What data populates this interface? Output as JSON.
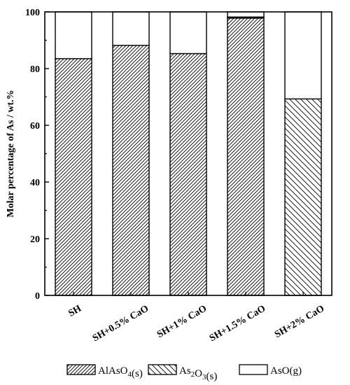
{
  "chart_data": {
    "type": "bar",
    "stacked": true,
    "categories": [
      "SH",
      "SH+0.5% CaO",
      "SH+1% CaO",
      "SH+1.5% CaO",
      "SH+2% CaO"
    ],
    "ylabel": "Molar percentage of As / wt.%",
    "xlabel": "",
    "ylim": [
      0,
      100
    ],
    "yticks": [
      0,
      20,
      40,
      60,
      80,
      100
    ],
    "grid": false,
    "legend_position": "bottom",
    "series": [
      {
        "name": "AlAsO4(s)",
        "legend": {
          "base": "AlAsO",
          "sub": "4",
          "suffix": "(s)"
        },
        "pattern": "dense-forward-hatch",
        "values": [
          83.5,
          88.2,
          85.3,
          97.8,
          0
        ]
      },
      {
        "name": "As2O3(s)",
        "legend": {
          "base": "As",
          "sub": "2",
          "mid": "O",
          "sub2": "3",
          "suffix": "(s)"
        },
        "pattern": "sparse-back-hatch",
        "values": [
          0,
          0,
          0,
          0.4,
          69.3
        ]
      },
      {
        "name": "AsO(g)",
        "legend": {
          "base": "AsO(g)"
        },
        "pattern": "empty",
        "values": [
          16.5,
          11.8,
          14.7,
          1.8,
          30.7
        ]
      }
    ]
  }
}
